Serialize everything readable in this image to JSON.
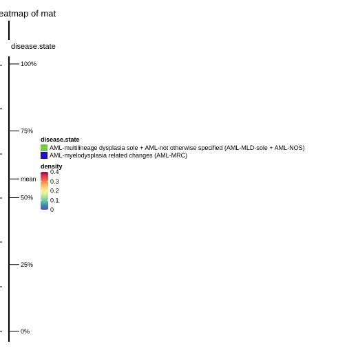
{
  "chart_data": {
    "type": "heatmap",
    "title": "eatmap of mat",
    "annotation_label": "disease.state",
    "axis_ticks": [
      {
        "label": "100%",
        "value": 1.0
      },
      {
        "label": "75%",
        "value": 0.75
      },
      {
        "label": "mean",
        "value": 0.57
      },
      {
        "label": "50%",
        "value": 0.5
      },
      {
        "label": "25%",
        "value": 0.25
      },
      {
        "label": "0%",
        "value": 0.0
      }
    ],
    "legend_disease": {
      "title": "disease.state",
      "items": [
        {
          "label": "AML-multilineage dysplasia sole + AML-not otherwise specified (AML-MLD-sole + AML-NOS)",
          "color": "#77c944"
        },
        {
          "label": "AML-myelodysplasia related changes (AML-MRC)",
          "color": "#1a14c8"
        }
      ]
    },
    "legend_density": {
      "title": "density",
      "breaks": [
        "0.4",
        "0.3",
        "0.2",
        "0.1",
        "0"
      ],
      "colors": [
        "#9e0142",
        "#d53e4f",
        "#f46d43",
        "#fdae61",
        "#fee08b",
        "#e6f598",
        "#abdda4",
        "#66c2a5",
        "#3288bd",
        "#5e4fa2"
      ]
    }
  }
}
